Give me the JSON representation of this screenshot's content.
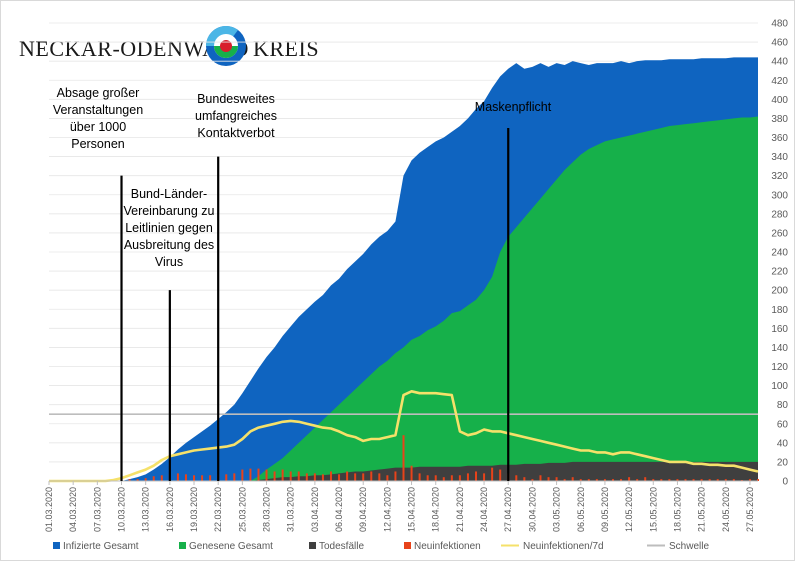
{
  "colors": {
    "infizierte": "#0f64c0",
    "genesene": "#16b04a",
    "todesfaelle": "#3f3f3f",
    "neuinfektionen": "#e8431a",
    "neuinfektionen7d": "#f5e16a",
    "schwelle": "#bdbdbd"
  },
  "logo": {
    "left": "NECKAR-ODENWALD",
    "right": "KREIS"
  },
  "chart_data": {
    "type": "area",
    "ylim": [
      0,
      480
    ],
    "yticks": [
      0,
      20,
      40,
      60,
      80,
      100,
      120,
      140,
      160,
      180,
      200,
      220,
      240,
      260,
      280,
      300,
      320,
      340,
      360,
      380,
      400,
      420,
      440,
      460,
      480
    ],
    "xticklabels": [
      "01.03.2020",
      "04.03.2020",
      "07.03.2020",
      "10.03.2020",
      "13.03.2020",
      "16.03.2020",
      "19.03.2020",
      "22.03.2020",
      "25.03.2020",
      "28.03.2020",
      "31.03.2020",
      "03.04.2020",
      "06.04.2020",
      "09.04.2020",
      "12.04.2020",
      "15.04.2020",
      "18.04.2020",
      "21.04.2020",
      "24.04.2020",
      "27.04.2020",
      "30.04.2020",
      "03.05.2020",
      "06.05.2020",
      "09.05.2020",
      "12.05.2020",
      "15.05.2020",
      "18.05.2020",
      "21.05.2020",
      "24.05.2020",
      "27.05.2020"
    ],
    "days": 89,
    "series": [
      {
        "name": "Infizierte Gesamt",
        "values": [
          0,
          0,
          0,
          0,
          0,
          0,
          0,
          0,
          0,
          0,
          2,
          4,
          7,
          12,
          18,
          25,
          33,
          40,
          46,
          52,
          58,
          65,
          72,
          80,
          92,
          105,
          118,
          130,
          140,
          152,
          162,
          172,
          180,
          188,
          195,
          205,
          212,
          222,
          230,
          238,
          248,
          256,
          262,
          272,
          320,
          336,
          344,
          350,
          356,
          360,
          366,
          372,
          380,
          390,
          398,
          412,
          424,
          432,
          438,
          432,
          434,
          438,
          434,
          438,
          436,
          440,
          438,
          436,
          438,
          438,
          438,
          440,
          438,
          440,
          441,
          441,
          441,
          442,
          442,
          442,
          442,
          443,
          443,
          443,
          443,
          444,
          444,
          444,
          444
        ]
      },
      {
        "name": "Genesene Gesamt",
        "values": [
          0,
          0,
          0,
          0,
          0,
          0,
          0,
          0,
          0,
          0,
          0,
          0,
          0,
          0,
          0,
          0,
          0,
          0,
          0,
          0,
          0,
          0,
          0,
          0,
          0,
          0,
          5,
          12,
          18,
          24,
          32,
          40,
          48,
          56,
          64,
          72,
          80,
          88,
          96,
          104,
          112,
          120,
          126,
          134,
          140,
          148,
          152,
          158,
          162,
          168,
          176,
          178,
          184,
          190,
          200,
          214,
          240,
          256,
          266,
          276,
          286,
          296,
          306,
          316,
          326,
          334,
          342,
          348,
          352,
          356,
          358,
          360,
          362,
          364,
          366,
          368,
          370,
          372,
          373,
          374,
          375,
          376,
          377,
          378,
          379,
          380,
          381,
          381,
          382
        ]
      },
      {
        "name": "Todesfälle",
        "values": [
          0,
          0,
          0,
          0,
          0,
          0,
          0,
          0,
          0,
          0,
          0,
          0,
          0,
          0,
          0,
          0,
          0,
          0,
          0,
          0,
          0,
          0,
          0,
          0,
          0,
          0,
          1,
          2,
          3,
          4,
          4,
          5,
          5,
          6,
          6,
          7,
          8,
          9,
          10,
          10,
          11,
          12,
          13,
          14,
          14,
          14,
          15,
          15,
          15,
          15,
          15,
          15,
          16,
          16,
          16,
          16,
          17,
          17,
          17,
          18,
          18,
          18,
          19,
          19,
          19,
          20,
          20,
          20,
          20,
          20,
          20,
          20,
          20,
          20,
          20,
          20,
          20,
          20,
          20,
          20,
          20,
          20,
          20,
          20,
          20,
          20,
          20,
          20,
          20
        ]
      },
      {
        "name": "Neuinfektionen",
        "values": [
          0,
          0,
          0,
          0,
          0,
          0,
          0,
          0,
          0,
          0,
          2,
          2,
          3,
          5,
          6,
          7,
          8,
          7,
          6,
          6,
          6,
          7,
          7,
          8,
          12,
          13,
          13,
          12,
          10,
          12,
          10,
          10,
          8,
          8,
          7,
          10,
          7,
          10,
          8,
          8,
          10,
          8,
          6,
          10,
          48,
          16,
          8,
          6,
          6,
          4,
          6,
          6,
          8,
          10,
          8,
          14,
          12,
          8,
          6,
          4,
          2,
          6,
          4,
          4,
          2,
          4,
          2,
          2,
          2,
          2,
          2,
          2,
          4,
          2,
          4,
          2,
          2,
          2,
          2,
          2,
          2,
          2,
          2,
          2,
          2,
          2,
          1,
          2,
          2
        ]
      },
      {
        "name": "Neuinfektionen/7d",
        "values": [
          0,
          0,
          0,
          0,
          0,
          0,
          0,
          0,
          1,
          3,
          6,
          9,
          12,
          16,
          22,
          26,
          28,
          30,
          32,
          33,
          34,
          35,
          36,
          38,
          44,
          52,
          56,
          58,
          60,
          62,
          63,
          62,
          60,
          58,
          56,
          55,
          52,
          48,
          46,
          42,
          44,
          44,
          46,
          48,
          90,
          94,
          92,
          92,
          92,
          91,
          90,
          52,
          48,
          50,
          54,
          52,
          52,
          50,
          48,
          46,
          44,
          42,
          40,
          38,
          36,
          34,
          32,
          32,
          30,
          30,
          28,
          30,
          30,
          28,
          26,
          24,
          22,
          20,
          20,
          20,
          18,
          18,
          17,
          17,
          16,
          16,
          14,
          12,
          10
        ]
      },
      {
        "name": "Schwelle",
        "values": [
          70
        ]
      }
    ],
    "annotations": [
      {
        "text": "Absage großer Veranstaltungen über 1000 Personen",
        "lines": [
          "Absage großer",
          "Veranstaltungen",
          "über 1000",
          "Personen"
        ],
        "day": 9,
        "top": 320
      },
      {
        "text": "Bund-Länder-Vereinbarung zu Leitlinien gegen Ausbreitung des Virus",
        "lines": [
          "Bund-Länder-",
          "Vereinbarung zu",
          "Leitlinien gegen",
          "Ausbreitung des",
          "Virus"
        ],
        "day": 15,
        "top": 200
      },
      {
        "text": "Bundesweites umfangreiches Kontaktverbot",
        "lines": [
          "Bundesweites",
          "umfangreiches",
          "Kontaktverbot"
        ],
        "day": 21,
        "top": 340
      },
      {
        "text": "Maskenpflicht",
        "lines": [
          "Maskenpflicht"
        ],
        "day": 57,
        "top": 370
      }
    ],
    "legend_position": "bottom"
  }
}
